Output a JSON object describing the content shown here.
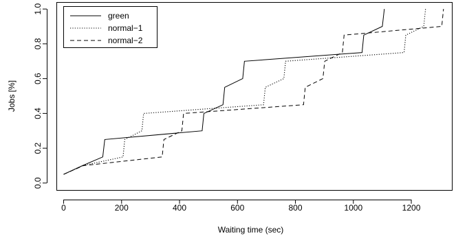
{
  "chart_data": {
    "type": "line",
    "title": "",
    "xlabel": "Waiting time (sec)",
    "ylabel": "Jobs [%]",
    "xlim": [
      -25,
      1340
    ],
    "ylim": [
      -0.04,
      1.04
    ],
    "x_ticks": [
      0,
      200,
      400,
      600,
      800,
      1000,
      1200
    ],
    "y_ticks": [
      0.0,
      0.2,
      0.4,
      0.6,
      0.8,
      1.0
    ],
    "y_tick_labels": [
      "0.0",
      "0.2",
      "0.4",
      "0.6",
      "0.8",
      "1.0"
    ],
    "grid": false,
    "legend_position": "top-left",
    "series": [
      {
        "name": "green",
        "line_style": "solid",
        "color": "#000000",
        "points": [
          [
            0,
            0.05
          ],
          [
            65,
            0.1
          ],
          [
            135,
            0.15
          ],
          [
            142,
            0.25
          ],
          [
            478,
            0.3
          ],
          [
            484,
            0.4
          ],
          [
            550,
            0.45
          ],
          [
            556,
            0.55
          ],
          [
            618,
            0.6
          ],
          [
            624,
            0.7
          ],
          [
            1030,
            0.75
          ],
          [
            1036,
            0.85
          ],
          [
            1100,
            0.9
          ],
          [
            1107,
            1.0
          ]
        ]
      },
      {
        "name": "normal−1",
        "line_style": "dotted",
        "color": "#000000",
        "points": [
          [
            0,
            0.05
          ],
          [
            65,
            0.1
          ],
          [
            205,
            0.15
          ],
          [
            211,
            0.25
          ],
          [
            270,
            0.3
          ],
          [
            276,
            0.4
          ],
          [
            690,
            0.45
          ],
          [
            696,
            0.55
          ],
          [
            760,
            0.6
          ],
          [
            766,
            0.7
          ],
          [
            1175,
            0.75
          ],
          [
            1181,
            0.85
          ],
          [
            1243,
            0.9
          ],
          [
            1249,
            1.0
          ]
        ]
      },
      {
        "name": "normal−2",
        "line_style": "dashed",
        "color": "#000000",
        "points": [
          [
            0,
            0.05
          ],
          [
            68,
            0.1
          ],
          [
            340,
            0.15
          ],
          [
            346,
            0.25
          ],
          [
            408,
            0.3
          ],
          [
            414,
            0.4
          ],
          [
            828,
            0.45
          ],
          [
            834,
            0.55
          ],
          [
            895,
            0.6
          ],
          [
            901,
            0.7
          ],
          [
            962,
            0.75
          ],
          [
            968,
            0.85
          ],
          [
            1305,
            0.9
          ],
          [
            1311,
            1.0
          ]
        ]
      }
    ]
  }
}
